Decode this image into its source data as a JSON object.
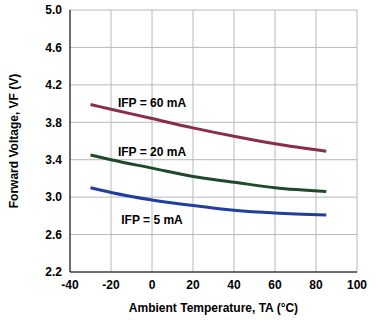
{
  "chart_data": {
    "type": "line",
    "x_label": "Ambient Temperature, TA (°C)",
    "y_label": "Forward Voltage, VF (V)",
    "x": [
      -30,
      -20,
      0,
      20,
      40,
      60,
      85
    ],
    "series": [
      {
        "name": "IFP = 60 mA",
        "color": "#8a2c4c",
        "values": [
          3.99,
          3.94,
          3.84,
          3.74,
          3.65,
          3.57,
          3.49
        ]
      },
      {
        "name": "IFP = 20 mA",
        "color": "#1f4a2a",
        "values": [
          3.45,
          3.4,
          3.31,
          3.22,
          3.16,
          3.1,
          3.06
        ]
      },
      {
        "name": "IFP = 5 mA",
        "color": "#1f3f9e",
        "values": [
          3.1,
          3.05,
          2.97,
          2.91,
          2.86,
          2.83,
          2.81
        ]
      }
    ],
    "xlim": [
      -40,
      100
    ],
    "xticks": [
      -40,
      -20,
      0,
      20,
      40,
      60,
      80,
      100
    ],
    "ylim": [
      2.2,
      5.0
    ],
    "yticks": [
      2.2,
      2.6,
      {
        "value": 3,
        "label": "3.0"
      },
      3.4,
      3.8,
      4.2,
      4.6,
      {
        "value": 5,
        "label": "5.0"
      }
    ],
    "grid": true
  }
}
